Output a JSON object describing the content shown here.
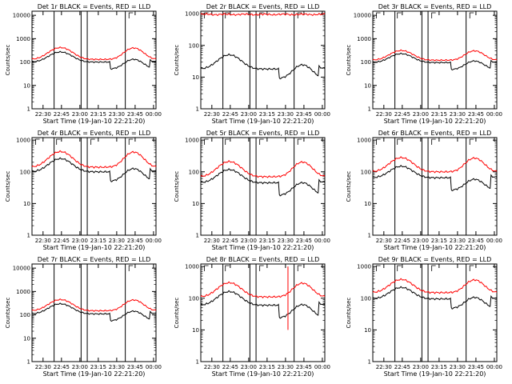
{
  "chart_data": [
    {
      "type": "line",
      "title": "Det 1r BLACK = Events, RED = LLD",
      "xlabel": "Start Time (19-Jan-10 22:21:20)",
      "ylabel": "Counts/sec",
      "ylim": [
        1,
        15000
      ],
      "yticks": [
        "1",
        "10",
        "100",
        "1000",
        "10000"
      ],
      "xticks": [
        "22:30",
        "22:45",
        "23:00",
        "23:15",
        "23:30",
        "23:45",
        "00:00"
      ],
      "vlines": [
        "22:39",
        "23:01",
        "23:06",
        "23:37"
      ],
      "flags": [
        "23:40"
      ],
      "series": [
        {
          "color": "#ff0000",
          "profile": "hump",
          "base": 130,
          "amp": 3.2
        },
        {
          "color": "#000000",
          "profile": "hump",
          "base": 100,
          "amp": 2.7,
          "drop": 0.5
        }
      ]
    },
    {
      "type": "line",
      "title": "Det 2r BLACK = Events, RED = LLD",
      "xlabel": "Start Time (19-Jan-10 22:21:20)",
      "ylabel": "Counts/sec",
      "ylim": [
        1,
        1200
      ],
      "yticks": [
        "1",
        "10",
        "100",
        "1000"
      ],
      "xticks": [
        "22:30",
        "22:45",
        "23:00",
        "23:15",
        "23:30",
        "23:45",
        "00:00"
      ],
      "vlines": [
        "22:39",
        "23:01",
        "23:06",
        "23:37"
      ],
      "flags": [
        "22:24",
        "22:41",
        "23:09",
        "23:40"
      ],
      "series": [
        {
          "color": "#ff0000",
          "profile": "flat",
          "base": 950,
          "amp": 1.05
        },
        {
          "color": "#000000",
          "profile": "hump",
          "base": 18,
          "amp": 2.8,
          "drop": 0.5
        }
      ]
    },
    {
      "type": "line",
      "title": "Det 3r BLACK = Events, RED = LLD",
      "xlabel": "Start Time (19-Jan-10 22:21:20)",
      "ylabel": "Counts/sec",
      "ylim": [
        1,
        15000
      ],
      "yticks": [
        "1",
        "10",
        "100",
        "1000",
        "10000"
      ],
      "xticks": [
        "22:30",
        "22:45",
        "23:00",
        "23:15",
        "23:30",
        "23:45",
        "00:00"
      ],
      "vlines": [
        "22:39",
        "23:01",
        "23:06",
        "23:37"
      ],
      "flags": [
        "22:24",
        "22:41",
        "23:09",
        "23:40"
      ],
      "series": [
        {
          "color": "#ff0000",
          "profile": "hump",
          "base": 120,
          "amp": 2.6
        },
        {
          "color": "#000000",
          "profile": "hump",
          "base": 95,
          "amp": 2.4,
          "drop": 0.5
        }
      ]
    },
    {
      "type": "line",
      "title": "Det 4r BLACK = Events, RED = LLD",
      "xlabel": "Start Time (19-Jan-10 22:21:20)",
      "ylabel": "Counts/sec",
      "ylim": [
        1,
        1200
      ],
      "yticks": [
        "1",
        "10",
        "100",
        "1000"
      ],
      "xticks": [
        "22:30",
        "22:45",
        "23:00",
        "23:15",
        "23:30",
        "23:45",
        "00:00"
      ],
      "vlines": [
        "22:39",
        "23:01",
        "23:06",
        "23:37"
      ],
      "flags": [
        "22:24",
        "22:41",
        "23:09",
        "23:40"
      ],
      "series": [
        {
          "color": "#ff0000",
          "profile": "hump",
          "base": 140,
          "amp": 3.1
        },
        {
          "color": "#000000",
          "profile": "hump",
          "base": 100,
          "amp": 2.6,
          "drop": 0.5
        }
      ]
    },
    {
      "type": "line",
      "title": "Det 5r BLACK = Events, RED = LLD",
      "xlabel": "Start Time (19-Jan-10 22:21:20)",
      "ylabel": "Counts/sec",
      "ylim": [
        1,
        1200
      ],
      "yticks": [
        "1",
        "10",
        "100",
        "1000"
      ],
      "xticks": [
        "22:30",
        "22:45",
        "23:00",
        "23:15",
        "23:30",
        "23:45",
        "00:00"
      ],
      "vlines": [
        "22:39",
        "23:01",
        "23:06",
        "23:37"
      ],
      "flags": [
        "22:24",
        "22:41",
        "23:09",
        "23:40"
      ],
      "series": [
        {
          "color": "#ff0000",
          "profile": "hump",
          "base": 70,
          "amp": 3.0
        },
        {
          "color": "#000000",
          "profile": "hump",
          "base": 45,
          "amp": 2.6,
          "drop": 0.4
        }
      ]
    },
    {
      "type": "line",
      "title": "Det 6r BLACK = Events, RED = LLD",
      "xlabel": "Start Time (19-Jan-10 22:21:20)",
      "ylabel": "Counts/sec",
      "ylim": [
        1,
        1200
      ],
      "yticks": [
        "1",
        "10",
        "100",
        "1000"
      ],
      "xticks": [
        "22:30",
        "22:45",
        "23:00",
        "23:15",
        "23:30",
        "23:45",
        "00:00"
      ],
      "vlines": [
        "22:39",
        "23:01",
        "23:06",
        "23:37"
      ],
      "flags": [
        "22:24",
        "22:41",
        "23:09",
        "23:40"
      ],
      "series": [
        {
          "color": "#ff0000",
          "profile": "hump",
          "base": 100,
          "amp": 2.8
        },
        {
          "color": "#000000",
          "profile": "hump",
          "base": 65,
          "amp": 2.3,
          "drop": 0.4
        }
      ]
    },
    {
      "type": "line",
      "title": "Det 7r BLACK = Events, RED = LLD",
      "xlabel": "Start Time (19-Jan-10 22:21:20)",
      "ylabel": "Counts/sec",
      "ylim": [
        1,
        15000
      ],
      "yticks": [
        "1",
        "10",
        "100",
        "1000",
        "10000"
      ],
      "xticks": [
        "22:30",
        "22:45",
        "23:00",
        "23:15",
        "23:30",
        "23:45",
        "00:00"
      ],
      "vlines": [
        "22:39",
        "23:01",
        "23:06",
        "23:37"
      ],
      "flags": [
        "23:40"
      ],
      "series": [
        {
          "color": "#ff0000",
          "profile": "hump",
          "base": 150,
          "amp": 3.0
        },
        {
          "color": "#000000",
          "profile": "hump",
          "base": 110,
          "amp": 2.7,
          "drop": 0.5
        }
      ]
    },
    {
      "type": "line",
      "title": "Det 8r BLACK = Events, RED = LLD",
      "xlabel": "Start Time (19-Jan-10 22:21:20)",
      "ylabel": "Counts/sec",
      "ylim": [
        1,
        1200
      ],
      "yticks": [
        "1",
        "10",
        "100",
        "1000"
      ],
      "xticks": [
        "22:30",
        "22:45",
        "23:00",
        "23:15",
        "23:30",
        "23:45",
        "00:00"
      ],
      "vlines": [
        "22:39",
        "23:01",
        "23:06",
        "23:37"
      ],
      "flags": [
        "22:24",
        "22:41",
        "23:09",
        "23:40"
      ],
      "spike": "23:32",
      "series": [
        {
          "color": "#ff0000",
          "profile": "hump",
          "base": 110,
          "amp": 2.8
        },
        {
          "color": "#000000",
          "profile": "hump",
          "base": 60,
          "amp": 2.7,
          "drop": 0.4
        }
      ]
    },
    {
      "type": "line",
      "title": "Det 9r BLACK = Events, RED = LLD",
      "xlabel": "Start Time (19-Jan-10 22:21:20)",
      "ylabel": "Counts/sec",
      "ylim": [
        1,
        1200
      ],
      "yticks": [
        "1",
        "10",
        "100",
        "1000"
      ],
      "xticks": [
        "22:30",
        "22:45",
        "23:00",
        "23:15",
        "23:30",
        "23:45",
        "00:00"
      ],
      "vlines": [
        "22:39",
        "23:01",
        "23:06",
        "23:37"
      ],
      "flags": [
        "22:24",
        "22:41",
        "23:09",
        "23:40"
      ],
      "series": [
        {
          "color": "#ff0000",
          "profile": "hump",
          "base": 150,
          "amp": 2.6
        },
        {
          "color": "#000000",
          "profile": "hump",
          "base": 95,
          "amp": 2.3,
          "drop": 0.5
        }
      ]
    }
  ]
}
